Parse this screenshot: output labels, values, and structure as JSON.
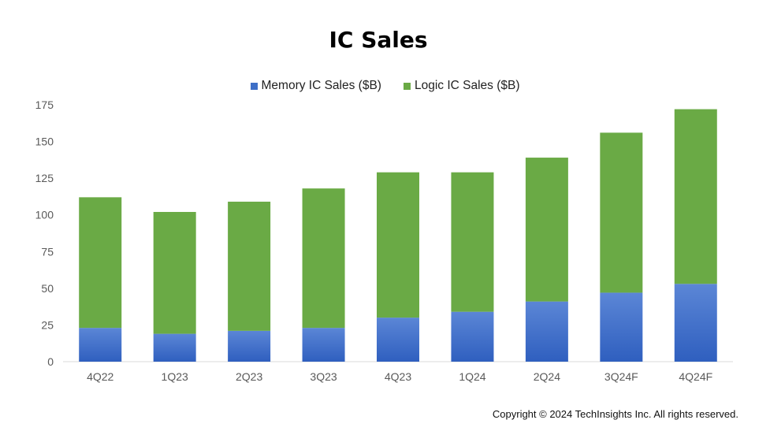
{
  "chart_data": {
    "type": "bar",
    "stacked": true,
    "title": "IC Sales",
    "categories": [
      "4Q22",
      "1Q23",
      "2Q23",
      "3Q23",
      "4Q23",
      "1Q24",
      "2Q24",
      "3Q24F",
      "4Q24F"
    ],
    "series": [
      {
        "name": "Memory IC Sales ($B)",
        "color": "#3e6fc7",
        "values": [
          23,
          19,
          21,
          23,
          30,
          34,
          41,
          47,
          53
        ]
      },
      {
        "name": "Logic IC Sales ($B)",
        "color": "#6aaa45",
        "values": [
          89,
          83,
          88,
          95,
          99,
          95,
          98,
          109,
          119
        ]
      }
    ],
    "ylim": [
      0,
      175
    ],
    "yticks": [
      "0",
      "25",
      "50",
      "75",
      "100",
      "125",
      "150",
      "175"
    ],
    "xlabel": "",
    "ylabel": "",
    "grid": false,
    "legend_position": "top-center"
  },
  "footer": {
    "copyright": "Copyright © 2024 TechInsights Inc.  All rights reserved."
  }
}
